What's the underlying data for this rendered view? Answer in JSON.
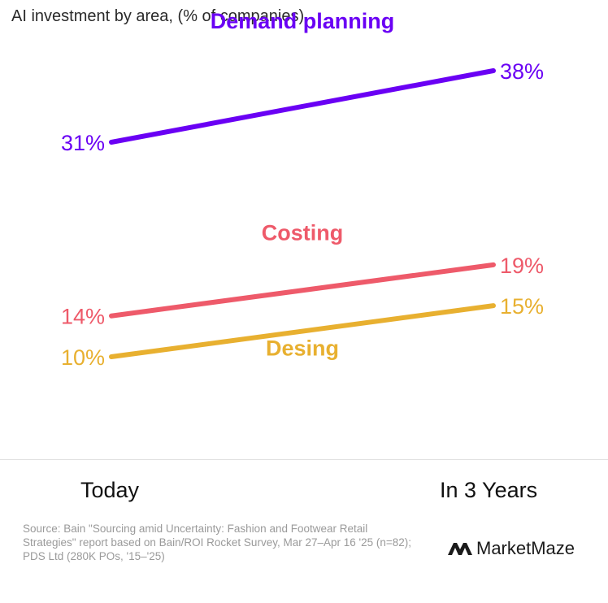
{
  "title": "AI investment by area, (% of companies)",
  "chart_data": {
    "type": "line",
    "title": "AI investment by area, (% of companies)",
    "categories": [
      "Today",
      "In 3 Years"
    ],
    "unit": "%",
    "series": [
      {
        "name": "Demand planning",
        "values": [
          31,
          38
        ],
        "color": "#6a00f4"
      },
      {
        "name": "Costing",
        "values": [
          14,
          19
        ],
        "color": "#ee5a6a"
      },
      {
        "name": "Desing",
        "values": [
          10,
          15
        ],
        "color": "#e8b030"
      }
    ],
    "legend": "inline"
  },
  "source": "Source: Bain \"Sourcing amid Uncertainty: Fashion and Footwear Retail Strategies\" report based on Bain/ROI Rocket Survey, Mar 27–Apr 16 '25 (n=82); PDS Ltd (280K POs, '15–'25)",
  "brand": {
    "name": "MarketMaze",
    "icon": "mm-logo-icon"
  }
}
